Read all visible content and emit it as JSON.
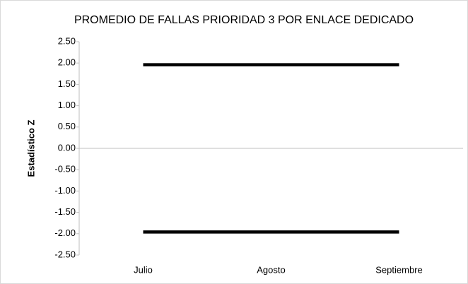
{
  "chart_data": {
    "type": "line",
    "title": "PROMEDIO DE FALLAS PRIORIDAD 3 POR ENLACE DEDICADO",
    "y_label": "Estadístico Z",
    "categories": [
      "Julio",
      "Agosto",
      "Septiembre"
    ],
    "series": [
      {
        "color": "#000000",
        "values": [
          1.96,
          1.96,
          1.96
        ]
      },
      {
        "color": "#000000",
        "values": [
          -1.96,
          -1.96,
          -1.96
        ]
      }
    ],
    "ylim": [
      -2.5,
      2.5
    ],
    "yticks": [
      {
        "value": 2.5,
        "label": "2.50"
      },
      {
        "value": 2,
        "label": "2.00"
      },
      {
        "value": 1.5,
        "label": "1.50"
      },
      {
        "value": 1,
        "label": "1.00"
      },
      {
        "value": 0.5,
        "label": "0.50"
      },
      {
        "value": 0,
        "label": "0.00"
      },
      {
        "value": -0.5,
        "label": "-0.50"
      },
      {
        "value": -1,
        "label": "-1.00"
      },
      {
        "value": -1.5,
        "label": "-1.50"
      },
      {
        "value": -2,
        "label": "-2.00"
      },
      {
        "value": -2.5,
        "label": "-2.50"
      }
    ],
    "grid": false
  }
}
